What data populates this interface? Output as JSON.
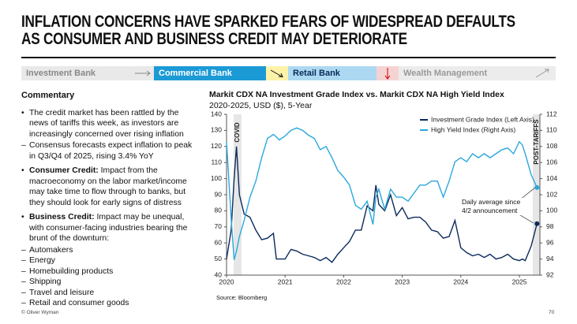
{
  "header": {
    "title": "INFLATION CONCERNS HAVE SPARKED FEARS OF WIDESPREAD DEFAULTS AS CONSUMER AND BUSINESS CREDIT MAY DETERIORATE"
  },
  "tabs": [
    "Investment Bank",
    "Commercial Bank",
    "Retail Bank",
    "Wealth Management"
  ],
  "commentary": {
    "heading": "Commentary",
    "bullets": [
      {
        "text": "The credit market has been rattled by the news of tariffs this week, as investors are increasingly concerned over rising inflation",
        "subs": [
          "Consensus forecasts expect inflation to peak in Q3/Q4 of 2025, rising 3.4% YoY"
        ]
      },
      {
        "lead": "Consumer Credit:",
        "text": "Impact from the macroeconomy on the labor market/income may take time to flow through to banks, but they should look for early signs of distress"
      },
      {
        "lead": "Business Credit:",
        "text": "Impact may be unequal, with consumer-facing industries bearing the brunt of the downturn:",
        "subs": [
          "Automakers",
          "Energy",
          "Homebuilding products",
          "Shipping",
          "Travel and leisure",
          "Retail and consumer goods"
        ]
      }
    ]
  },
  "chart_data": {
    "type": "line",
    "title": "Markit CDX NA Investment Grade Index vs. Markit CDX NA High Yield Index",
    "subtitle": "2020-2025, USD ($), 5-Year",
    "annotations": [
      "COVID",
      "POST-TARIFFS",
      "Daily average since 4/2 announcement"
    ],
    "source": "Source: Bloomberg",
    "x": [
      2020.0,
      2020.08,
      2020.13,
      2020.17,
      2020.22,
      2020.3,
      2020.4,
      2020.5,
      2020.6,
      2020.7,
      2020.8,
      2020.85,
      2020.9,
      2021.0,
      2021.1,
      2021.2,
      2021.3,
      2021.4,
      2021.5,
      2021.6,
      2021.7,
      2021.8,
      2021.9,
      2022.0,
      2022.1,
      2022.2,
      2022.3,
      2022.4,
      2022.5,
      2022.55,
      2022.6,
      2022.7,
      2022.8,
      2022.9,
      2023.0,
      2023.1,
      2023.2,
      2023.3,
      2023.4,
      2023.5,
      2023.6,
      2023.7,
      2023.8,
      2023.9,
      2024.0,
      2024.1,
      2024.2,
      2024.3,
      2024.4,
      2024.5,
      2024.6,
      2024.7,
      2024.8,
      2024.9,
      2025.0,
      2025.05,
      2025.1,
      2025.2,
      2025.3
    ],
    "series": [
      {
        "name": "Investment Grade Index (Left Axis)",
        "color": "#0b2a5b",
        "values": [
          50,
          68,
          100,
          120,
          90,
          78,
          76,
          68,
          62,
          63,
          66,
          50,
          50,
          50,
          56,
          55,
          53,
          52,
          51,
          49,
          51,
          48,
          53,
          57,
          61,
          68,
          68,
          83,
          80,
          96,
          84,
          80,
          90,
          77,
          82,
          75,
          76,
          76,
          73,
          68,
          67,
          63,
          64,
          74,
          57,
          54,
          52,
          53,
          51,
          53,
          50,
          51,
          53,
          50,
          49,
          50,
          49,
          58,
          72
        ]
      },
      {
        "name": "High Yield Index (Right Axis)",
        "color": "#2aa8dc",
        "axis": "y2",
        "values": [
          108.6,
          99,
          93.9,
          95,
          96.8,
          98.8,
          101.7,
          103.7,
          106.6,
          109,
          109.5,
          109.2,
          108.8,
          109.3,
          110,
          110.3,
          110,
          109.4,
          109,
          107.6,
          108,
          106.6,
          105,
          104.2,
          103.2,
          100.7,
          100.2,
          101.2,
          98.3,
          101.7,
          102.7,
          100.2,
          102.7,
          101.7,
          101.7,
          101.2,
          102.2,
          103.2,
          103.2,
          103.7,
          103.7,
          101.7,
          103.7,
          106.1,
          106.6,
          106.1,
          107.1,
          106.6,
          107.1,
          106.6,
          107.1,
          107.6,
          107.8,
          107.1,
          108.6,
          108.2,
          107.1,
          104.5,
          102.9
        ]
      }
    ],
    "xlim": [
      2020,
      2025.35
    ],
    "xticks": [
      2020,
      2021,
      2022,
      2023,
      2024,
      2025
    ],
    "ylim": [
      40,
      140
    ],
    "yticks": [
      40,
      50,
      60,
      70,
      80,
      90,
      100,
      110,
      120,
      130,
      140
    ],
    "y2lim": [
      92,
      112
    ],
    "y2ticks": [
      92,
      94,
      96,
      98,
      100,
      102,
      104,
      106,
      108,
      110,
      112
    ],
    "legend": "upper right"
  },
  "footer": {
    "copyright": "© Oliver Wyman",
    "page": "70"
  }
}
